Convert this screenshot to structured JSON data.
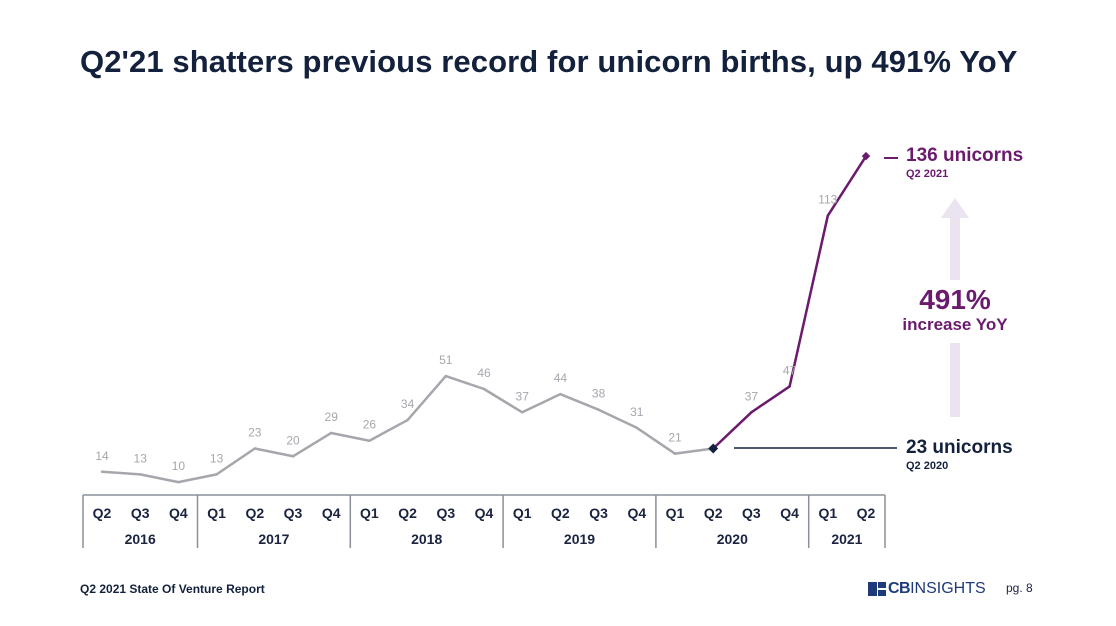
{
  "title": "Q2'21 shatters previous record for unicorn births, up 491% YoY",
  "colors": {
    "title": "#14213d",
    "gray_series": "#a6a6ad",
    "highlight_series": "#6b1b6e",
    "arrow": "#ebe3f0",
    "marker_dark": "#14213d"
  },
  "chart_data": {
    "type": "line",
    "title": "Q2'21 shatters previous record for unicorn births, up 491% YoY",
    "xlabel": "",
    "ylabel": "",
    "ylim": [
      0,
      140
    ],
    "grid": false,
    "categories": [
      "Q2 2016",
      "Q3 2016",
      "Q4 2016",
      "Q1 2017",
      "Q2 2017",
      "Q3 2017",
      "Q4 2017",
      "Q1 2018",
      "Q2 2018",
      "Q3 2018",
      "Q4 2018",
      "Q1 2019",
      "Q2 2019",
      "Q3 2019",
      "Q4 2019",
      "Q1 2020",
      "Q2 2020",
      "Q3 2020",
      "Q4 2020",
      "Q1 2021",
      "Q2 2021"
    ],
    "quarter_labels": [
      "Q2",
      "Q3",
      "Q4",
      "Q1",
      "Q2",
      "Q3",
      "Q4",
      "Q1",
      "Q2",
      "Q3",
      "Q4",
      "Q1",
      "Q2",
      "Q3",
      "Q4",
      "Q1",
      "Q2",
      "Q3",
      "Q4",
      "Q1",
      "Q2"
    ],
    "year_groups": [
      {
        "year": "2016",
        "count": 3
      },
      {
        "year": "2017",
        "count": 4
      },
      {
        "year": "2018",
        "count": 4
      },
      {
        "year": "2019",
        "count": 4
      },
      {
        "year": "2020",
        "count": 4
      },
      {
        "year": "2021",
        "count": 2
      }
    ],
    "series": [
      {
        "name": "Unicorn births",
        "values": [
          14,
          13,
          10,
          13,
          23,
          20,
          29,
          26,
          34,
          51,
          46,
          37,
          44,
          38,
          31,
          21,
          23,
          37,
          47,
          113,
          136
        ]
      }
    ],
    "highlight_from_index": 16,
    "data_labels_shown": [
      true,
      true,
      true,
      true,
      true,
      true,
      true,
      true,
      true,
      true,
      true,
      true,
      true,
      true,
      true,
      true,
      false,
      true,
      true,
      true,
      false
    ],
    "annotations": [
      {
        "text": "136 unicorns",
        "subtext": "Q2 2021",
        "index": 20
      },
      {
        "text": "23 unicorns",
        "subtext": "Q2 2020",
        "index": 16
      },
      {
        "text": "491%",
        "subtext": "increase YoY"
      }
    ]
  },
  "callouts": {
    "top": {
      "big": "136 unicorns",
      "small": "Q2 2021"
    },
    "bottom": {
      "big": "23 unicorns",
      "small": "Q2 2020"
    },
    "growth": {
      "num": "491%",
      "sub": "increase YoY"
    }
  },
  "footer": {
    "report": "Q2 2021 State Of Venture Report",
    "logo_bold": "CB",
    "logo_light": "INSIGHTS",
    "page": "pg. 8"
  }
}
